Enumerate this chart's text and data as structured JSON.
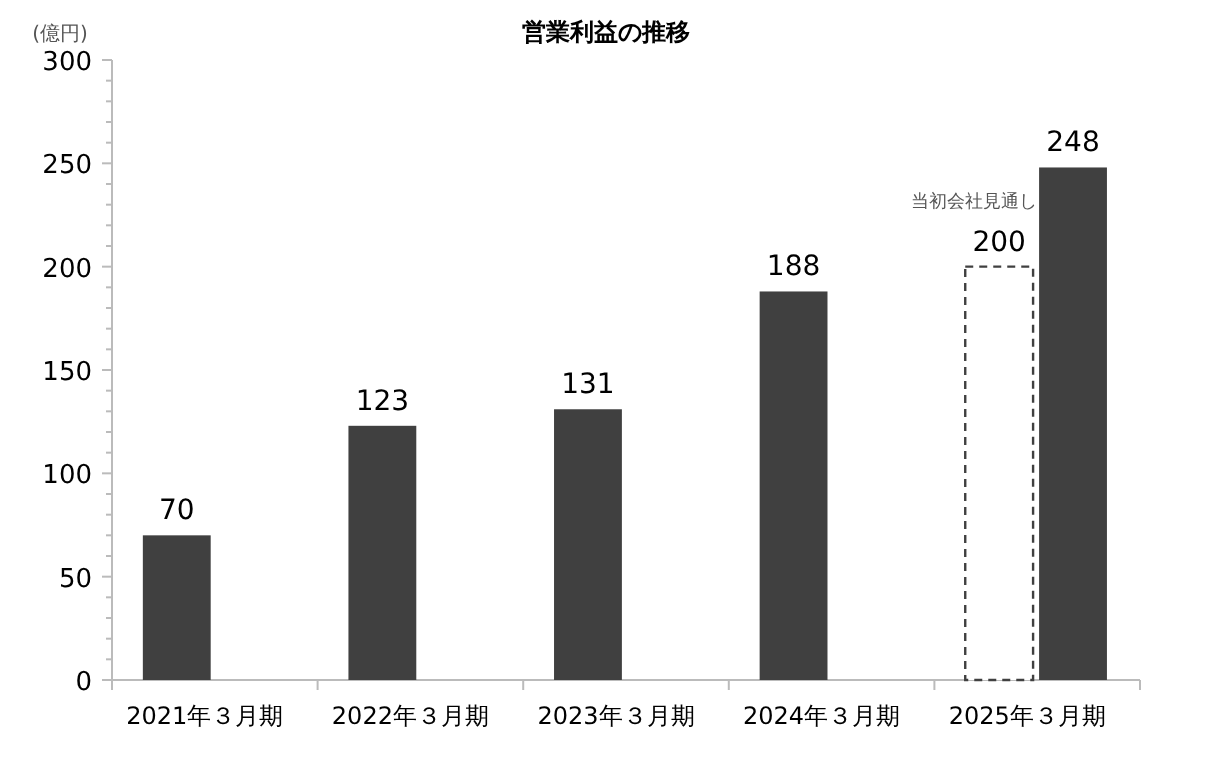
{
  "chart_data": {
    "type": "bar",
    "title": "営業利益の推移",
    "ylabel": "(億円)",
    "categories": [
      "2021年３月期",
      "2022年３月期",
      "2023年３月期",
      "2024年３月期",
      "2025年３月期"
    ],
    "series": [
      {
        "color": "#404040",
        "values": [
          70,
          123,
          131,
          188,
          null
        ]
      },
      {
        "name": "当初会社見通し",
        "color": "#404040",
        "line_style": "dashed",
        "values": [
          null,
          null,
          null,
          null,
          200
        ]
      },
      {
        "color": "#404040",
        "values": [
          null,
          null,
          null,
          null,
          248
        ]
      }
    ],
    "data_labels": true,
    "grid": false,
    "ylim": [
      0,
      300
    ],
    "yticks": [
      0,
      {
        "value": 10,
        "label": null
      },
      {
        "value": 20,
        "label": null
      },
      {
        "value": 30,
        "label": null
      },
      {
        "value": 40,
        "label": null
      },
      50,
      {
        "value": 60,
        "label": null
      },
      {
        "value": 70,
        "label": null
      },
      {
        "value": 80,
        "label": null
      },
      {
        "value": 90,
        "label": null
      },
      100,
      {
        "value": 110,
        "label": null
      },
      {
        "value": 120,
        "label": null
      },
      {
        "value": 130,
        "label": null
      },
      {
        "value": 140,
        "label": null
      },
      150,
      {
        "value": 160,
        "label": null
      },
      {
        "value": 170,
        "label": null
      },
      {
        "value": 180,
        "label": null
      },
      {
        "value": 190,
        "label": null
      },
      200,
      {
        "value": 210,
        "label": null
      },
      {
        "value": 220,
        "label": null
      },
      {
        "value": 230,
        "label": null
      },
      {
        "value": 240,
        "label": null
      },
      250,
      {
        "value": 260,
        "label": null
      },
      {
        "value": 270,
        "label": null
      },
      {
        "value": 280,
        "label": null
      },
      {
        "value": 290,
        "label": null
      },
      300
    ]
  }
}
